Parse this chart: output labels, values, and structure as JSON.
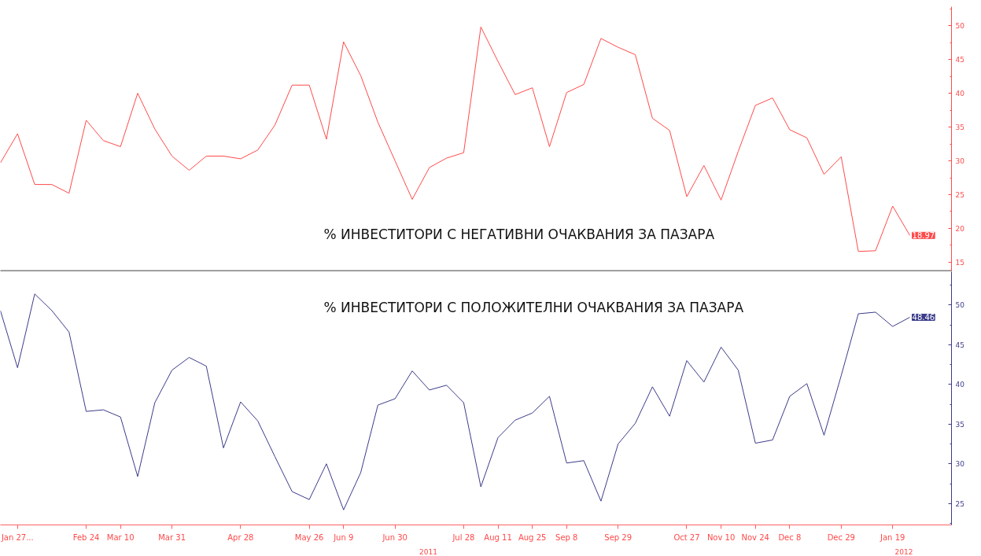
{
  "chart_data": [
    {
      "type": "line",
      "x": [
        "2011-01-20",
        "2011-01-27",
        "2011-02-03",
        "2011-02-10",
        "2011-02-17",
        "2011-02-24",
        "2011-03-03",
        "2011-03-10",
        "2011-03-17",
        "2011-03-24",
        "2011-03-31",
        "2011-04-07",
        "2011-04-14",
        "2011-04-21",
        "2011-04-28",
        "2011-05-05",
        "2011-05-12",
        "2011-05-19",
        "2011-05-26",
        "2011-06-02",
        "2011-06-09",
        "2011-06-16",
        "2011-06-23",
        "2011-06-30",
        "2011-07-07",
        "2011-07-14",
        "2011-07-21",
        "2011-07-28",
        "2011-08-04",
        "2011-08-11",
        "2011-08-18",
        "2011-08-25",
        "2011-09-01",
        "2011-09-08",
        "2011-09-15",
        "2011-09-22",
        "2011-09-29",
        "2011-10-06",
        "2011-10-13",
        "2011-10-20",
        "2011-10-27",
        "2011-11-03",
        "2011-11-10",
        "2011-11-17",
        "2011-11-24",
        "2011-12-01",
        "2011-12-08",
        "2011-12-15",
        "2011-12-22",
        "2011-12-29",
        "2012-01-05",
        "2012-01-12",
        "2012-01-19",
        "2012-01-26"
      ],
      "series": [
        {
          "name": "% ИНВЕСТИТОРИ С НЕГАТИВНИ ОЧАКВАНИЯ ЗА ПАЗАРА",
          "color": "#ff4a4a",
          "values": [
            29.7,
            34.0,
            26.5,
            26.5,
            25.2,
            36.0,
            33.0,
            32.1,
            40.0,
            34.7,
            30.7,
            28.6,
            30.7,
            30.7,
            30.3,
            31.6,
            35.3,
            41.2,
            41.2,
            33.2,
            47.6,
            42.6,
            35.7,
            30.0,
            24.3,
            29.0,
            30.4,
            31.2,
            49.8,
            44.7,
            39.8,
            40.8,
            32.1,
            40.1,
            41.3,
            48.1,
            46.8,
            45.7,
            36.3,
            34.5,
            24.7,
            29.3,
            24.2,
            31.4,
            38.2,
            39.3,
            34.6,
            33.4,
            28.0,
            30.6,
            16.6,
            16.7,
            23.3,
            18.97
          ],
          "value_labels": [
            null,
            null,
            null,
            null,
            null,
            null,
            null,
            null,
            null,
            null,
            null,
            null,
            null,
            null,
            null,
            null,
            null,
            null,
            null,
            null,
            null,
            null,
            null,
            null,
            null,
            null,
            null,
            null,
            null,
            null,
            null,
            null,
            null,
            null,
            null,
            null,
            null,
            null,
            null,
            null,
            null,
            null,
            null,
            null,
            null,
            null,
            null,
            null,
            null,
            null,
            null,
            null,
            null,
            "18.97"
          ]
        }
      ],
      "xlim": [
        "2011-01-20",
        "2012-02-12"
      ],
      "ylim": [
        13.6,
        52.8
      ],
      "yticks": [
        15,
        20,
        25,
        30,
        35,
        40,
        45,
        50
      ],
      "tick_labels": "y",
      "grid": false
    },
    {
      "type": "line",
      "x": [
        "2011-01-20",
        "2011-01-27",
        "2011-02-03",
        "2011-02-10",
        "2011-02-17",
        "2011-02-24",
        "2011-03-03",
        "2011-03-10",
        "2011-03-17",
        "2011-03-24",
        "2011-03-31",
        "2011-04-07",
        "2011-04-14",
        "2011-04-21",
        "2011-04-28",
        "2011-05-05",
        "2011-05-12",
        "2011-05-19",
        "2011-05-26",
        "2011-06-02",
        "2011-06-09",
        "2011-06-16",
        "2011-06-23",
        "2011-06-30",
        "2011-07-07",
        "2011-07-14",
        "2011-07-21",
        "2011-07-28",
        "2011-08-04",
        "2011-08-11",
        "2011-08-18",
        "2011-08-25",
        "2011-09-01",
        "2011-09-08",
        "2011-09-15",
        "2011-09-22",
        "2011-09-29",
        "2011-10-06",
        "2011-10-13",
        "2011-10-20",
        "2011-10-27",
        "2011-11-03",
        "2011-11-10",
        "2011-11-17",
        "2011-11-24",
        "2011-12-01",
        "2011-12-08",
        "2011-12-15",
        "2011-12-22",
        "2011-12-29",
        "2012-01-05",
        "2012-01-12",
        "2012-01-19",
        "2012-01-26"
      ],
      "series": [
        {
          "name": "% ИНВЕСТИТОРИ С ПОЛОЖИТЕЛНИ ОЧАКВАНИЯ ЗА ПАЗАРА",
          "color": "#3b3b8a",
          "values": [
            49.3,
            42.1,
            51.4,
            49.3,
            46.6,
            36.6,
            36.8,
            35.9,
            28.4,
            37.7,
            41.8,
            43.4,
            42.3,
            32.0,
            37.8,
            35.4,
            30.9,
            26.5,
            25.5,
            30.0,
            24.2,
            28.9,
            37.4,
            38.2,
            41.7,
            39.3,
            39.9,
            37.7,
            27.1,
            33.3,
            35.5,
            36.4,
            38.5,
            30.1,
            30.4,
            25.3,
            32.5,
            35.1,
            39.7,
            36.0,
            43.0,
            40.3,
            44.7,
            41.8,
            32.6,
            33.0,
            38.5,
            40.1,
            33.6,
            41.1,
            48.9,
            49.1,
            47.3,
            48.46
          ],
          "value_labels": [
            null,
            null,
            null,
            null,
            null,
            null,
            null,
            null,
            null,
            null,
            null,
            null,
            null,
            null,
            null,
            null,
            null,
            null,
            null,
            null,
            null,
            null,
            null,
            null,
            null,
            null,
            null,
            null,
            null,
            null,
            null,
            null,
            null,
            null,
            null,
            null,
            null,
            null,
            null,
            null,
            null,
            null,
            null,
            null,
            null,
            null,
            null,
            null,
            null,
            null,
            null,
            null,
            null,
            "48.46"
          ]
        }
      ],
      "xlim": [
        "2011-01-20",
        "2012-02-12"
      ],
      "ylim": [
        22.3,
        54.2
      ],
      "yticks": [
        25,
        30,
        35,
        40,
        45,
        50
      ],
      "xticks": [
        {
          "value": "2011-01-27",
          "label": "Jan 27..."
        },
        {
          "value": "2011-02-24",
          "label": "Feb 24"
        },
        {
          "value": "2011-03-10",
          "label": "Mar 10"
        },
        {
          "value": "2011-03-31",
          "label": "Mar 31"
        },
        {
          "value": "2011-04-28",
          "label": "Apr 28"
        },
        {
          "value": "2011-05-26",
          "label": "May 26"
        },
        {
          "value": "2011-06-09",
          "label": "Jun 9"
        },
        {
          "value": "2011-06-30",
          "label": "Jun 30"
        },
        {
          "value": "2011-07-28",
          "label": "Jul 28"
        },
        {
          "value": "2011-08-11",
          "label": "Aug 11"
        },
        {
          "value": "2011-08-25",
          "label": "Aug 25"
        },
        {
          "value": "2011-09-08",
          "label": "Sep 8"
        },
        {
          "value": "2011-09-29",
          "label": "Sep 29"
        },
        {
          "value": "2011-10-27",
          "label": "Oct 27"
        },
        {
          "value": "2011-11-10",
          "label": "Nov 10"
        },
        {
          "value": "2011-11-24",
          "label": "Nov 24"
        },
        {
          "value": "2011-12-08",
          "label": "Dec 8"
        },
        {
          "value": "2011-12-29",
          "label": "Dec 29"
        },
        {
          "value": "2012-01-19",
          "label": "Jan 19"
        }
      ],
      "annotations": [
        "2011",
        "2012"
      ],
      "grid": false
    }
  ]
}
